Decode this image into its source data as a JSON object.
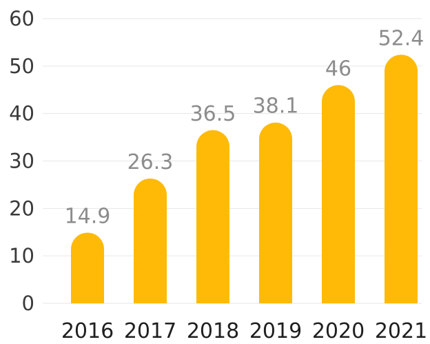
{
  "chart_data": {
    "type": "bar",
    "title": "",
    "xlabel": "",
    "ylabel": "",
    "categories": [
      "2016",
      "2017",
      "2018",
      "2019",
      "2020",
      "2021"
    ],
    "values": [
      14.9,
      26.3,
      36.5,
      38.1,
      46,
      52.4
    ],
    "data_labels": [
      "14.9",
      "26.3",
      "36.5",
      "38.1",
      "46",
      "52.4"
    ],
    "y_ticks": [
      "0",
      "10",
      "20",
      "30",
      "40",
      "50",
      "60"
    ],
    "ylim": [
      0,
      60
    ],
    "grid": true,
    "legend": "none",
    "bar_color": "#FFBA08",
    "bar_shape": "rounded-top"
  }
}
